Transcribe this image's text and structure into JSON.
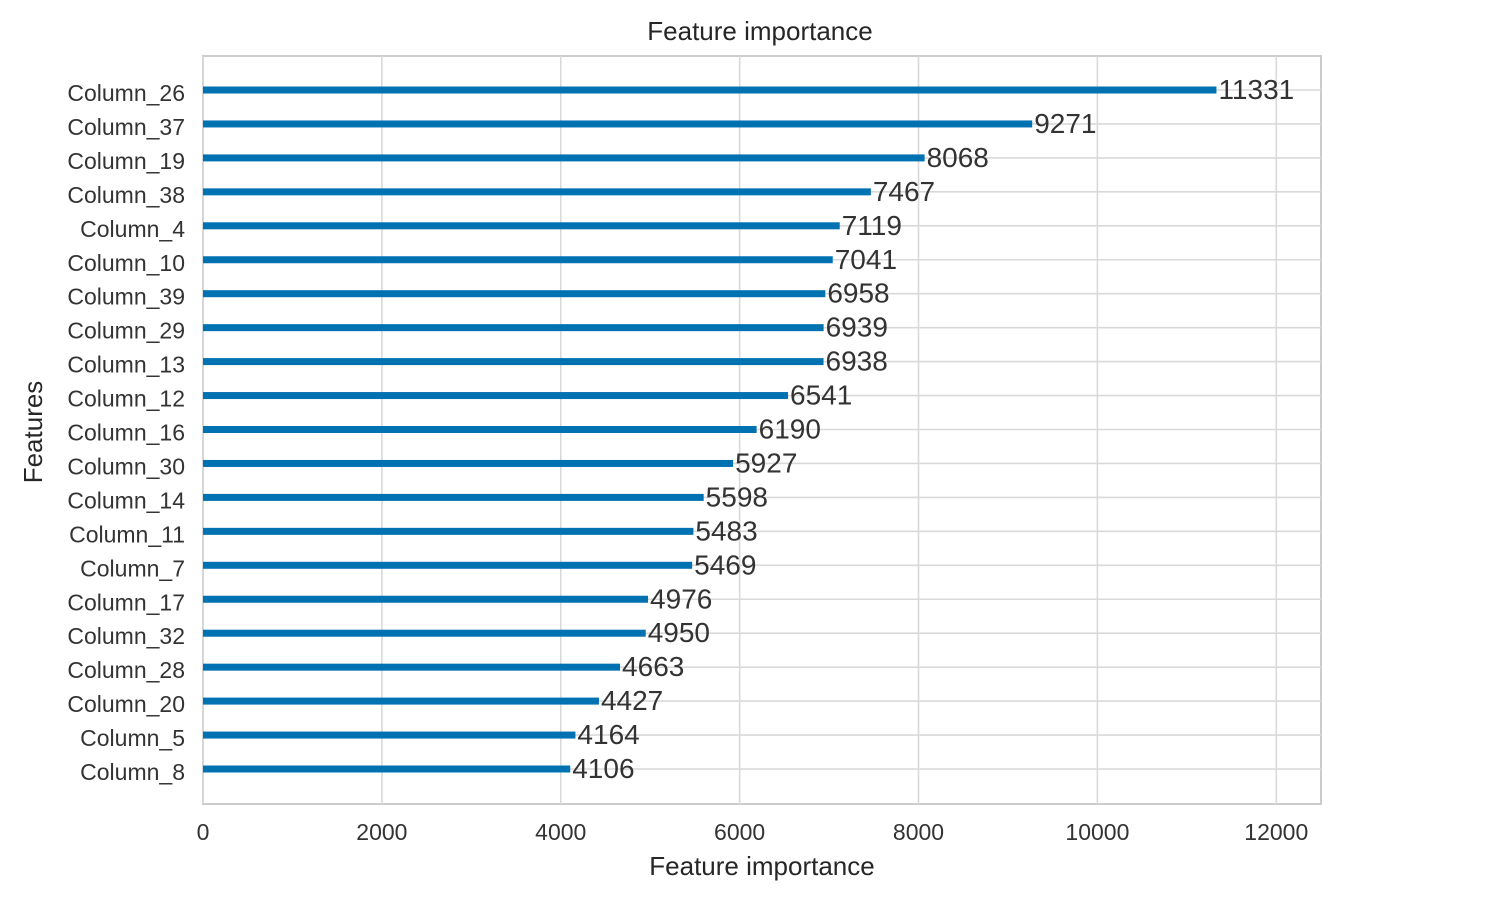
{
  "chart_data": {
    "type": "bar",
    "orientation": "horizontal",
    "title": "Feature importance",
    "xlabel": "Feature importance",
    "ylabel": "Features",
    "xlim": [
      0,
      12500
    ],
    "xticks": [
      0,
      2000,
      4000,
      6000,
      8000,
      10000,
      12000
    ],
    "grid": true,
    "bar_color": "#0072b2",
    "categories": [
      "Column_26",
      "Column_37",
      "Column_19",
      "Column_38",
      "Column_4",
      "Column_10",
      "Column_39",
      "Column_29",
      "Column_13",
      "Column_12",
      "Column_16",
      "Column_30",
      "Column_14",
      "Column_11",
      "Column_7",
      "Column_17",
      "Column_32",
      "Column_28",
      "Column_20",
      "Column_5",
      "Column_8"
    ],
    "values": [
      11331,
      9271,
      8068,
      7467,
      7119,
      7041,
      6958,
      6939,
      6938,
      6541,
      6190,
      5927,
      5598,
      5483,
      5469,
      4976,
      4950,
      4663,
      4427,
      4164,
      4106
    ]
  }
}
